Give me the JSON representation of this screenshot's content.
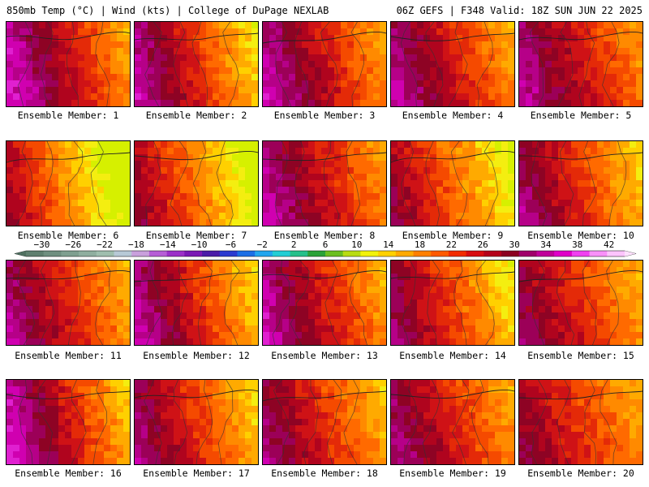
{
  "header": {
    "left": "850mb Temp (°C) | Wind (kts) | College of DuPage NEXLAB",
    "right": "06Z GEFS | F348 Valid: 18Z SUN JUN 22 2025"
  },
  "colorbar": {
    "ticks": [
      "−30",
      "−26",
      "−22",
      "−18",
      "−14",
      "−10",
      "−6",
      "−2",
      "2",
      "6",
      "10",
      "14",
      "18",
      "22",
      "26",
      "30",
      "34",
      "38",
      "42"
    ],
    "min": -32,
    "max": 44,
    "colors": [
      "#5f7f6f",
      "#6f8f80",
      "#7f9f90",
      "#8fae9f",
      "#9fbeae",
      "#b7c9d6",
      "#c9a0dc",
      "#b65ed6",
      "#9b30c8",
      "#7a19b4",
      "#4b1ca8",
      "#2b3ad0",
      "#1b6ee6",
      "#21a6ee",
      "#22ced4",
      "#24c08a",
      "#2aa238",
      "#6bbf20",
      "#b8dc12",
      "#f2f20c",
      "#ffd100",
      "#ffaa00",
      "#ff8000",
      "#ff5a00",
      "#f22c00",
      "#d80c10",
      "#b4001a",
      "#8c0020",
      "#a0006a",
      "#c0009a",
      "#e000c8",
      "#f040f0",
      "#f890f8",
      "#fcc4fc"
    ]
  },
  "members": [
    {
      "label": "Ensemble Member: 1",
      "warmth": 0.75,
      "lean": -0.3
    },
    {
      "label": "Ensemble Member: 2",
      "warmth": 0.62,
      "lean": -0.5
    },
    {
      "label": "Ensemble Member: 3",
      "warmth": 0.72,
      "lean": -0.2
    },
    {
      "label": "Ensemble Member: 4",
      "warmth": 0.7,
      "lean": -0.1
    },
    {
      "label": "Ensemble Member: 5",
      "warmth": 0.72,
      "lean": 0.0
    },
    {
      "label": "Ensemble Member: 6",
      "warmth": 0.32,
      "lean": -0.5
    },
    {
      "label": "Ensemble Member: 7",
      "warmth": 0.4,
      "lean": -0.4
    },
    {
      "label": "Ensemble Member: 8",
      "warmth": 0.72,
      "lean": -0.1
    },
    {
      "label": "Ensemble Member: 9",
      "warmth": 0.45,
      "lean": -0.3
    },
    {
      "label": "Ensemble Member: 10",
      "warmth": 0.6,
      "lean": -0.2
    },
    {
      "label": "Ensemble Member: 11",
      "warmth": 0.66,
      "lean": -0.1
    },
    {
      "label": "Ensemble Member: 12",
      "warmth": 0.64,
      "lean": -0.4
    },
    {
      "label": "Ensemble Member: 13",
      "warmth": 0.7,
      "lean": -0.2
    },
    {
      "label": "Ensemble Member: 14",
      "warmth": 0.55,
      "lean": -0.3
    },
    {
      "label": "Ensemble Member: 15",
      "warmth": 0.62,
      "lean": 0.1
    },
    {
      "label": "Ensemble Member: 16",
      "warmth": 0.7,
      "lean": -0.5
    },
    {
      "label": "Ensemble Member: 17",
      "warmth": 0.6,
      "lean": -0.2
    },
    {
      "label": "Ensemble Member: 18",
      "warmth": 0.62,
      "lean": -0.1
    },
    {
      "label": "Ensemble Member: 19",
      "warmth": 0.66,
      "lean": 0.0
    },
    {
      "label": "Ensemble Member: 20",
      "warmth": 0.6,
      "lean": 0.2
    }
  ]
}
